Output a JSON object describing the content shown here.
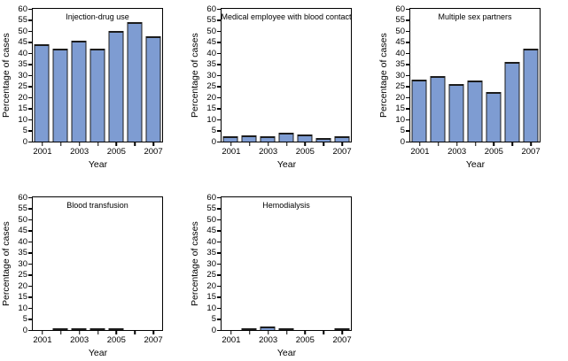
{
  "figure": {
    "background": "#ffffff",
    "bar_fill": "#7e9cd2",
    "bar_border": "#1c1c1c",
    "axis_color": "#000000",
    "text_color": "#000000"
  },
  "chart_data": [
    {
      "type": "bar",
      "title": "Injection-drug use",
      "categories": [
        "2001",
        "2002",
        "2003",
        "2004",
        "2005",
        "2006",
        "2007"
      ],
      "values": [
        44,
        42,
        45.5,
        42,
        50,
        54,
        47.5
      ],
      "xlabel": "Year",
      "ylabel": "Percentage of cases",
      "ylim": [
        0,
        60
      ],
      "ytick_step": 5,
      "xticks_shown": [
        "2001",
        "2003",
        "2005",
        "2007"
      ],
      "grid": false,
      "legend": "none"
    },
    {
      "type": "bar",
      "title": "Medical employee with blood contact",
      "categories": [
        "2001",
        "2002",
        "2003",
        "2004",
        "2005",
        "2006",
        "2007"
      ],
      "values": [
        2.6,
        2.7,
        2.3,
        3.9,
        3.3,
        1.7,
        2.3
      ],
      "xlabel": "Year",
      "ylabel": "Percentage of cases",
      "ylim": [
        0,
        60
      ],
      "ytick_step": 5,
      "xticks_shown": [
        "2001",
        "2003",
        "2005",
        "2007"
      ],
      "grid": false,
      "legend": "none"
    },
    {
      "type": "bar",
      "title": "Multiple sex partners",
      "categories": [
        "2001",
        "2002",
        "2003",
        "2004",
        "2005",
        "2006",
        "2007"
      ],
      "values": [
        28,
        29.5,
        26,
        27.5,
        22.5,
        36,
        42
      ],
      "xlabel": "Year",
      "ylabel": "Percentage of cases",
      "ylim": [
        0,
        60
      ],
      "ytick_step": 5,
      "xticks_shown": [
        "2001",
        "2003",
        "2005",
        "2007"
      ],
      "grid": false,
      "legend": "none"
    },
    {
      "type": "bar",
      "title": "Blood transfusion",
      "categories": [
        "2001",
        "2002",
        "2003",
        "2004",
        "2005",
        "2006",
        "2007"
      ],
      "values": [
        0,
        0.6,
        0.6,
        0.6,
        0.6,
        0,
        0
      ],
      "xlabel": "Year",
      "ylabel": "Percentage of cases",
      "ylim": [
        0,
        60
      ],
      "ytick_step": 5,
      "xticks_shown": [
        "2001",
        "2003",
        "2005",
        "2007"
      ],
      "grid": false,
      "legend": "none"
    },
    {
      "type": "bar",
      "title": "Hemodialysis",
      "categories": [
        "2001",
        "2002",
        "2003",
        "2004",
        "2005",
        "2006",
        "2007"
      ],
      "values": [
        0,
        1,
        1.8,
        1,
        0,
        0,
        0.6
      ],
      "xlabel": "Year",
      "ylabel": "Percentage of cases",
      "ylim": [
        0,
        60
      ],
      "ytick_step": 5,
      "xticks_shown": [
        "2001",
        "2003",
        "2005",
        "2007"
      ],
      "grid": false,
      "legend": "none"
    }
  ]
}
